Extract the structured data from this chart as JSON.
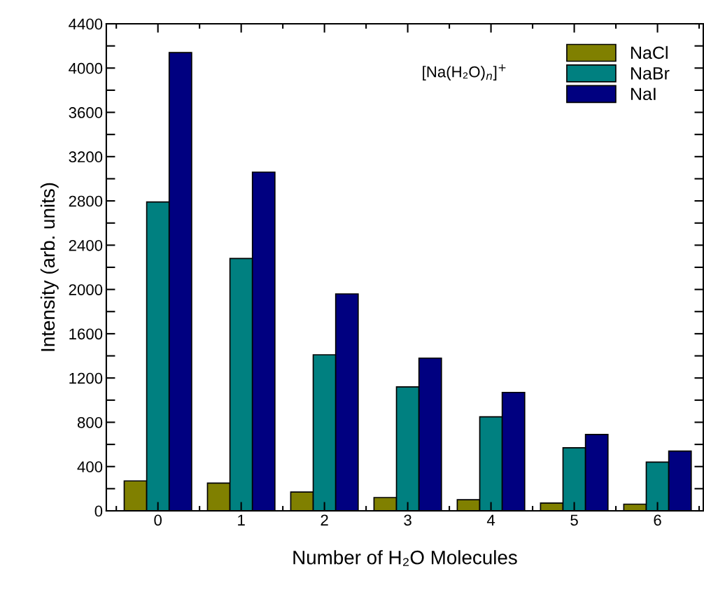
{
  "chart_data": {
    "type": "bar",
    "xlabel": "Number of H₂O Molecules",
    "ylabel": "Intensity (arb. units)",
    "categories": [
      "0",
      "1",
      "2",
      "3",
      "4",
      "5",
      "6"
    ],
    "series": [
      {
        "name": "NaCl",
        "color": "#808000",
        "values": [
          270,
          250,
          170,
          120,
          100,
          70,
          60
        ]
      },
      {
        "name": "NaBr",
        "color": "#008080",
        "values": [
          2790,
          2280,
          1410,
          1120,
          850,
          570,
          440
        ]
      },
      {
        "name": "NaI",
        "color": "#000080",
        "values": [
          4140,
          3060,
          1960,
          1380,
          1070,
          690,
          540
        ]
      }
    ],
    "ylim": [
      0,
      4400
    ],
    "yticks": [
      0,
      {
        "value": 200,
        "label": null
      },
      400,
      {
        "value": 600,
        "label": null
      },
      800,
      {
        "value": 1000,
        "label": null
      },
      1200,
      {
        "value": 1400,
        "label": null
      },
      1600,
      {
        "value": 1800,
        "label": null
      },
      2000,
      {
        "value": 2200,
        "label": null
      },
      2400,
      {
        "value": 2600,
        "label": null
      },
      2800,
      {
        "value": 3000,
        "label": null
      },
      3200,
      {
        "value": 3400,
        "label": null
      },
      3600,
      {
        "value": 3800,
        "label": null
      },
      4000,
      {
        "value": 4200,
        "label": null
      },
      4400
    ],
    "annotations": [
      "[Na(H₂O)$_{n}$]$^{+}$"
    ],
    "legend": "top right",
    "grid": false
  }
}
